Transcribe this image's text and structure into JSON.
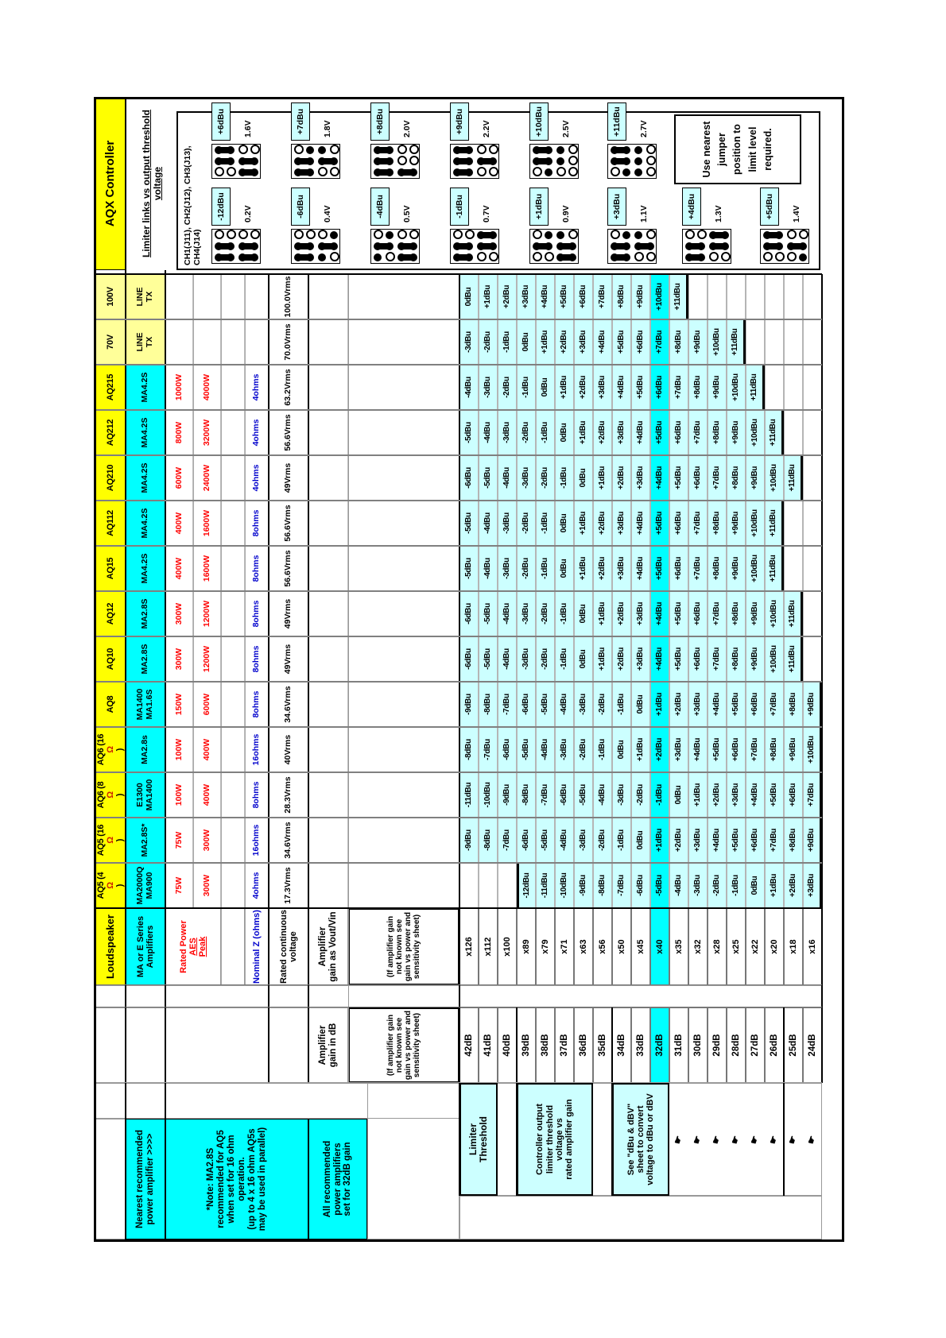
{
  "title": "AQX Controller",
  "subtitle": "Limiter links vs output threshold voltage",
  "channels_line": "CH1(J11), CH2(J12), CH3(J13), CH4(J14)",
  "note_box": [
    "Use nearest",
    "jumper",
    "position to",
    "limit level",
    "required."
  ],
  "left_notes": {
    "nearest": [
      "Nearest recommended",
      "power amplifier >>>>"
    ],
    "ma_note": [
      "*Note: MA2.8S",
      "recommended for AQ5",
      "when set for 16 ohm",
      "operation.",
      "(up to 4 x 16 ohm AQ5s",
      "may be used in parallel)"
    ],
    "all_recommended": [
      "All recommended",
      "power amplifiers",
      "set for 32dB gain"
    ],
    "limiter_threshold": [
      "Limiter",
      "Threshold"
    ],
    "controller_output": [
      "Controller output",
      "limiter threshold",
      "voltage vs",
      "rated amplifier gain"
    ],
    "see_sheet": [
      "See \"dBu & dBV\"",
      "sheet to convert",
      "voltage to dBu or dBV"
    ],
    "hand_icon": "☛"
  },
  "row_headers": {
    "loudspeaker": "Loudspeaker",
    "amplifiers": [
      "MA or E Series",
      "Amplifiers"
    ],
    "rated_power": "Rated Power",
    "aes": "AES",
    "peak": "Peak",
    "nominal_z": "Nominal Z (ohms)",
    "rated_voltage": [
      "Rated continuous",
      "voltage"
    ],
    "gain_vout": [
      "Amplifier",
      "gain as Vout/Vin"
    ],
    "gain_db": [
      "Amplifier",
      "gain in dB"
    ],
    "if_gain_note": [
      "(If amplifier gain",
      "not known see",
      "gain vs power and",
      "sensitivity sheet)"
    ]
  },
  "gains": [
    {
      "db": "42dB",
      "x": "x126"
    },
    {
      "db": "41dB",
      "x": "x112"
    },
    {
      "db": "40dB",
      "x": "x100"
    },
    {
      "db": "39dB",
      "x": "x89"
    },
    {
      "db": "38dB",
      "x": "x79"
    },
    {
      "db": "37dB",
      "x": "x71"
    },
    {
      "db": "36dB",
      "x": "x63"
    },
    {
      "db": "35dB",
      "x": "x56"
    },
    {
      "db": "34dB",
      "x": "x50"
    },
    {
      "db": "33dB",
      "x": "x45"
    },
    {
      "db": "32dB",
      "x": "x40"
    },
    {
      "db": "31dB",
      "x": "x35"
    },
    {
      "db": "30dB",
      "x": "x32"
    },
    {
      "db": "29dB",
      "x": "x28"
    },
    {
      "db": "28dB",
      "x": "x25"
    },
    {
      "db": "27dB",
      "x": "x22"
    },
    {
      "db": "26dB",
      "x": "x20"
    },
    {
      "db": "25dB",
      "x": "x18"
    },
    {
      "db": "24dB",
      "x": "x16"
    }
  ],
  "models": [
    {
      "label": "AQ5 (4Ω)",
      "amp": [
        "MA2000Q",
        "MA900"
      ],
      "aes": "75W",
      "peak": "300W",
      "z": "4ohms",
      "vrms": "17.3Vrms",
      "head": "yellow",
      "values": [
        "",
        "",
        "",
        "-12dBu",
        "-11dBu",
        "-10dBu",
        "-9dBu",
        "-8dBu",
        "-7dBu",
        "-6dBu",
        "-5dBu",
        "-4dBu",
        "-3dBu",
        "-2dBu",
        "-1dBu",
        "0dBu",
        "+1dBu",
        "+2dBu",
        "+3dBu"
      ]
    },
    {
      "label": "AQ5 (16Ω)",
      "amp": [
        "MA2.8S*"
      ],
      "aes": "75W",
      "peak": "300W",
      "z": "16ohms",
      "vrms": "34.6Vrms",
      "head": "yellow",
      "values": [
        "-9dBu",
        "-8dBu",
        "-7dBu",
        "-6dBu",
        "-5dBu",
        "-4dBu",
        "-3dBu",
        "-2dBu",
        "-1dBu",
        "0dBu",
        "+1dBu",
        "+2dBu",
        "+3dBu",
        "+4dBu",
        "+5dBu",
        "+6dBu",
        "+7dBu",
        "+8dBu",
        "+9dBu"
      ]
    },
    {
      "label": "AQ6 (8Ω)",
      "amp": [
        "E1300",
        "MA1400"
      ],
      "aes": "100W",
      "peak": "400W",
      "z": "8ohms",
      "vrms": "28.3Vrms",
      "head": "yellow",
      "values": [
        "-11dBu",
        "-10dBu",
        "-9dBu",
        "-8dBu",
        "-7dBu",
        "-6dBu",
        "-5dBu",
        "-4dBu",
        "-3dBu",
        "-2dBu",
        "-1dBu",
        "0dBu",
        "+1dBu",
        "+2dBu",
        "+3dBu",
        "+4dBu",
        "+5dBu",
        "+6dBu",
        "+7dBu"
      ]
    },
    {
      "label": "AQ6 (16Ω)",
      "amp": [
        "MA2.8s"
      ],
      "aes": "100W",
      "peak": "400W",
      "z": "16ohms",
      "vrms": "40Vrms",
      "head": "yellow",
      "values": [
        "-8dBu",
        "-7dBu",
        "-6dBu",
        "-5dBu",
        "-4dBu",
        "-3dBu",
        "-2dBu",
        "-1dBu",
        "0dBu",
        "+1dBu",
        "+2dBu",
        "+3dBu",
        "+4dBu",
        "+5dBu",
        "+6dBu",
        "+7dBu",
        "+8dBu",
        "+9dBu",
        "+10dBu"
      ]
    },
    {
      "label": "AQ8",
      "amp": [
        "MA1400",
        "MA1.6S"
      ],
      "aes": "150W",
      "peak": "600W",
      "z": "8ohms",
      "vrms": "34.6Vrms",
      "head": "yellow",
      "values": [
        "-9dBu",
        "-8dBu",
        "-7dBu",
        "-6dBu",
        "-5dBu",
        "-4dBu",
        "-3dBu",
        "-2dBu",
        "-1dBu",
        "0dBu",
        "+1dBu",
        "+2dBu",
        "+3dBu",
        "+4dBu",
        "+5dBu",
        "+6dBu",
        "+7dBu",
        "+8dBu",
        "+9dBu"
      ]
    },
    {
      "label": "AQ10",
      "amp": [
        "MA2.8S"
      ],
      "aes": "300W",
      "peak": "1200W",
      "z": "8ohms",
      "vrms": "49Vrms",
      "head": "yellow",
      "values": [
        "-6dBu",
        "-5dBu",
        "-4dBu",
        "-3dBu",
        "-2dBu",
        "-1dBu",
        "0dBu",
        "+1dBu",
        "+2dBu",
        "+3dBu",
        "+4dBu",
        "+5dBu",
        "+6dBu",
        "+7dBu",
        "+8dBu",
        "+9dBu",
        "+10dBu",
        "+11dBu",
        ""
      ]
    },
    {
      "label": "AQ12",
      "amp": [
        "MA2.8S"
      ],
      "aes": "300W",
      "peak": "1200W",
      "z": "8ohms",
      "vrms": "49Vrms",
      "head": "yellow",
      "values": [
        "-6dBu",
        "-5dBu",
        "-4dBu",
        "-3dBu",
        "-2dBu",
        "-1dBu",
        "0dBu",
        "+1dBu",
        "+2dBu",
        "+3dBu",
        "+4dBu",
        "+5dBu",
        "+6dBu",
        "+7dBu",
        "+8dBu",
        "+9dBu",
        "+10dBu",
        "+11dBu",
        ""
      ]
    },
    {
      "label": "AQ15",
      "amp": [
        "MA4.2S"
      ],
      "aes": "400W",
      "peak": "1600W",
      "z": "8ohms",
      "vrms": "56.6Vrms",
      "head": "yellow",
      "values": [
        "-5dBu",
        "-4dBu",
        "-3dBu",
        "-2dBu",
        "-1dBu",
        "0dBu",
        "+1dBu",
        "+2dBu",
        "+3dBu",
        "+4dBu",
        "+5dBu",
        "+6dBu",
        "+7dBu",
        "+8dBu",
        "+9dBu",
        "+10dBu",
        "+11dBu",
        "",
        ""
      ]
    },
    {
      "label": "AQ112",
      "amp": [
        "MA4.2S"
      ],
      "aes": "400W",
      "peak": "1600W",
      "z": "8ohms",
      "vrms": "56.6Vrms",
      "head": "yellow",
      "values": [
        "-5dBu",
        "-4dBu",
        "-3dBu",
        "-2dBu",
        "-1dBu",
        "0dBu",
        "+1dBu",
        "+2dBu",
        "+3dBu",
        "+4dBu",
        "+5dBu",
        "+6dBu",
        "+7dBu",
        "+8dBu",
        "+9dBu",
        "+10dBu",
        "+11dBu",
        "",
        ""
      ]
    },
    {
      "label": "AQ210",
      "amp": [
        "MA4.2S"
      ],
      "aes": "600W",
      "peak": "2400W",
      "z": "4ohms",
      "vrms": "49Vrms",
      "head": "yellow",
      "values": [
        "-6dBu",
        "-5dBu",
        "-4dBu",
        "-3dBu",
        "-2dBu",
        "-1dBu",
        "0dBu",
        "+1dBu",
        "+2dBu",
        "+3dBu",
        "+4dBu",
        "+5dBu",
        "+6dBu",
        "+7dBu",
        "+8dBu",
        "+9dBu",
        "+10dBu",
        "+11dBu",
        ""
      ]
    },
    {
      "label": "AQ212",
      "amp": [
        "MA4.2S"
      ],
      "aes": "800W",
      "peak": "3200W",
      "z": "4ohms",
      "vrms": "56.6Vrms",
      "head": "yellow",
      "values": [
        "-5dBu",
        "-4dBu",
        "-3dBu",
        "-2dBu",
        "-1dBu",
        "0dBu",
        "+1dBu",
        "+2dBu",
        "+3dBu",
        "+4dBu",
        "+5dBu",
        "+6dBu",
        "+7dBu",
        "+8dBu",
        "+9dBu",
        "+10dBu",
        "+11dBu",
        "",
        ""
      ]
    },
    {
      "label": "AQ215",
      "amp": [
        "MA4.2S"
      ],
      "aes": "1000W",
      "peak": "4000W",
      "z": "4ohms",
      "vrms": "63.2Vrms",
      "head": "yellow",
      "values": [
        "-4dBu",
        "-3dBu",
        "-2dBu",
        "-1dBu",
        "0dBu",
        "+1dBu",
        "+2dBu",
        "+3dBu",
        "+4dBu",
        "+5dBu",
        "+6dBu",
        "+7dBu",
        "+8dBu",
        "+9dBu",
        "+10dBu",
        "+11dBu",
        "",
        "",
        ""
      ]
    },
    {
      "label": "70V",
      "amp": [
        "LINE",
        "TX"
      ],
      "aes": "",
      "peak": "",
      "z": "",
      "vrms": "70.0Vrms",
      "head": "pale",
      "values": [
        "-3dBu",
        "-2dBu",
        "-1dBu",
        "0dBu",
        "+1dBu",
        "+2dBu",
        "+3dBu",
        "+4dBu",
        "+5dBu",
        "+6dBu",
        "+7dBu",
        "+8dBu",
        "+9dBu",
        "+10dBu",
        "+11dBu",
        "",
        "",
        "",
        ""
      ]
    },
    {
      "label": "100V",
      "amp": [
        "LINE",
        "TX"
      ],
      "aes": "",
      "peak": "",
      "z": "",
      "vrms": "100.0Vrms",
      "head": "pale",
      "values": [
        "0dBu",
        "+1dBu",
        "+2dBu",
        "+3dBu",
        "+4dBu",
        "+5dBu",
        "+6dBu",
        "+7dBu",
        "+8dBu",
        "+9dBu",
        "+10dBu",
        "+11dBu",
        "",
        "",
        "",
        "",
        "",
        "",
        ""
      ]
    }
  ],
  "jumpers": {
    "low": [
      {
        "label": "-12dBu",
        "voltage": "0.2V",
        "pins": [
          "oooo",
          "xxxx",
          "xxxx"
        ]
      },
      {
        "label": "-6dBu",
        "voltage": "0.4V",
        "pins": [
          "ooox",
          "xxxx",
          "xxxo"
        ]
      },
      {
        "label": "-4dBu",
        "voltage": "0.5V",
        "pins": [
          "oxoo",
          "xxxx",
          "xoxx"
        ]
      },
      {
        "label": "-1dBu",
        "voltage": "0.7V",
        "pins": [
          "ooxx",
          "xxxx",
          "xxoo"
        ]
      },
      {
        "label": "+1dBu",
        "voltage": "0.9V",
        "pins": [
          "oxxo",
          "xxxx",
          "ooxx"
        ]
      },
      {
        "label": "+3dBu",
        "voltage": "1.1V",
        "pins": [
          "oxxo",
          "xxxx",
          "xxoo"
        ]
      },
      {
        "label": "+4dBu",
        "voltage": "1.3V",
        "pins": [
          "ooxx",
          "xxxx",
          "xxoo"
        ]
      },
      {
        "label": "+5dBu",
        "voltage": "1.4V",
        "pins": [
          "xxoo",
          "xxxx",
          "ooox"
        ]
      }
    ],
    "high": [
      {
        "label": "+6dBu",
        "voltage": "1.6V",
        "pins": [
          "xxoo",
          "xxxx",
          "ooxx"
        ]
      },
      {
        "label": "+7dBu",
        "voltage": "1.8V",
        "pins": [
          "oxxo",
          "xxxx",
          "xxoo"
        ]
      },
      {
        "label": "+8dBu",
        "voltage": "2.0V",
        "pins": [
          "xxoo",
          "xxoo",
          "xxxx"
        ]
      },
      {
        "label": "+9dBu",
        "voltage": "2.2V",
        "pins": [
          "xxoo",
          "xxxx",
          "xxoo"
        ]
      },
      {
        "label": "+10dBu",
        "voltage": "2.5V",
        "pins": [
          "xxxo",
          "xxxo",
          "oxoo"
        ]
      },
      {
        "label": "+11dBu",
        "voltage": "2.7V",
        "pins": [
          "xxxo",
          "xxxo",
          "oxxo"
        ]
      }
    ]
  },
  "colors": {
    "highlight": "#00FFFF",
    "data_fill": "#CCFFFF",
    "yellow": "#FFFF00",
    "pale_yellow": "#FFFF99",
    "power_red": "#FF0000",
    "ohms_blue": "#0000CC"
  }
}
